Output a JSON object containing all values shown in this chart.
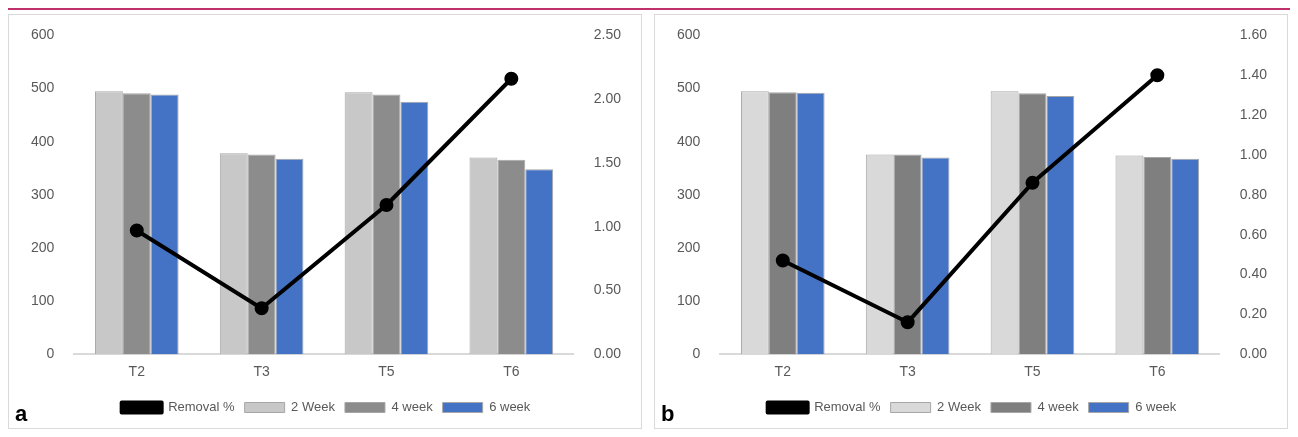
{
  "chart_data": [
    {
      "type": "bar",
      "categories": [
        "T2",
        "T3",
        "T5",
        "T6"
      ],
      "series": [
        {
          "name": "2 Week",
          "color": "#c8c8c8",
          "values": [
            495,
            378,
            493,
            370
          ]
        },
        {
          "name": "4 week",
          "color": "#8c8c8c",
          "values": [
            491,
            376,
            489,
            366
          ]
        },
        {
          "name": "6 week",
          "color": "#4472c4",
          "values": [
            489,
            368,
            475,
            348
          ]
        },
        {
          "name": "Removal %",
          "type": "line",
          "axis": "y2",
          "color": "#000000",
          "values": [
            0.97,
            0.36,
            1.17,
            2.16
          ]
        }
      ],
      "ylim": [
        0,
        600
      ],
      "yticks": [
        0,
        100,
        200,
        300,
        400,
        500,
        600
      ],
      "y2lim": [
        0,
        2.5
      ],
      "y2ticks": [
        {
          "value": 0,
          "label": "0.00"
        },
        {
          "value": 0.5,
          "label": "0.50"
        },
        {
          "value": 1,
          "label": "1.00"
        },
        {
          "value": 1.5,
          "label": "1.50"
        },
        {
          "value": 2,
          "label": "2.00"
        },
        {
          "value": 2.5,
          "label": "2.50"
        }
      ],
      "grid": false,
      "legend": "bottom",
      "marker": "circle",
      "annotations": [
        "a"
      ]
    },
    {
      "type": "bar",
      "categories": [
        "T2",
        "T3",
        "T5",
        "T6"
      ],
      "series": [
        {
          "name": "2 Week",
          "color": "#d9d9d9",
          "values": [
            495,
            376,
            495,
            374
          ]
        },
        {
          "name": "4 week",
          "color": "#7f7f7f",
          "values": [
            493,
            376,
            491,
            371
          ]
        },
        {
          "name": "6 week",
          "color": "#4472c4",
          "values": [
            492,
            370,
            486,
            368
          ]
        },
        {
          "name": "Removal %",
          "type": "line",
          "axis": "y2",
          "color": "#000000",
          "values": [
            0.47,
            0.16,
            0.86,
            1.4
          ]
        }
      ],
      "ylim": [
        0,
        600
      ],
      "yticks": [
        0,
        100,
        200,
        300,
        400,
        500,
        600
      ],
      "y2lim": [
        0,
        1.6
      ],
      "y2ticks": [
        {
          "value": 0,
          "label": "0.00"
        },
        {
          "value": 0.2,
          "label": "0.20"
        },
        {
          "value": 0.4,
          "label": "0.40"
        },
        {
          "value": 0.6,
          "label": "0.60"
        },
        {
          "value": 0.8,
          "label": "0.80"
        },
        {
          "value": 1,
          "label": "1.00"
        },
        {
          "value": 1.2,
          "label": "1.20"
        },
        {
          "value": 1.4,
          "label": "1.40"
        },
        {
          "value": 1.6,
          "label": "1.60"
        }
      ],
      "grid": false,
      "legend": "bottom",
      "marker": "circle",
      "annotations": [
        "b"
      ]
    }
  ]
}
